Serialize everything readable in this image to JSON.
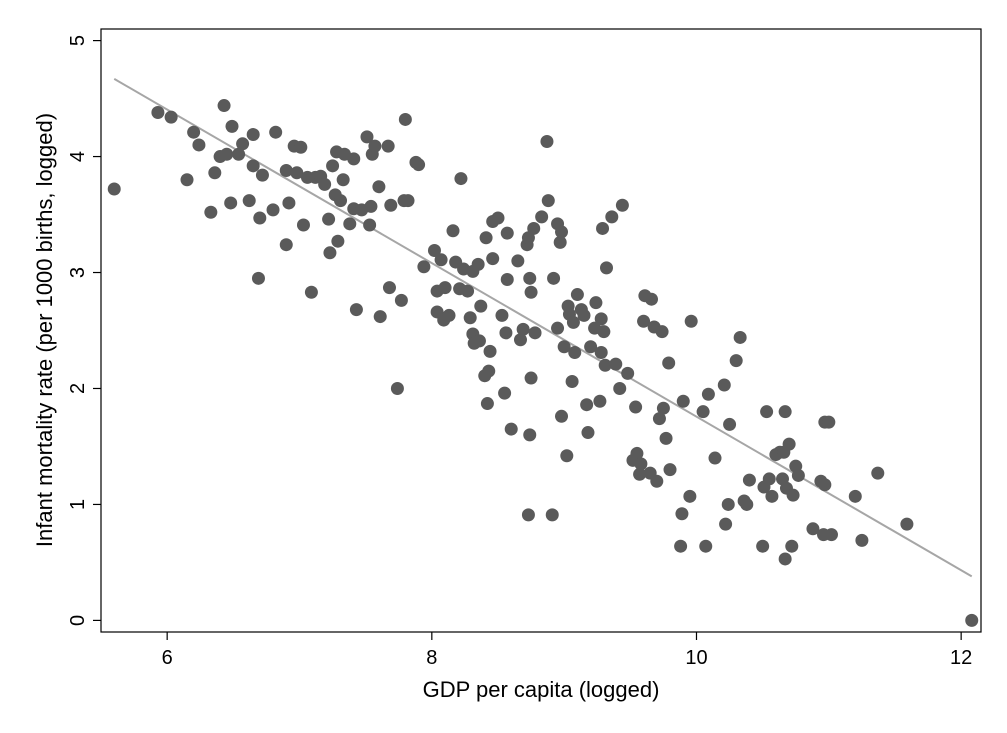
{
  "chart_data": {
    "type": "scatter",
    "title": "",
    "xlabel": "GDP per capita (logged)",
    "ylabel": "Infant mortality rate (per 1000 births, logged)",
    "xlim": [
      5.5,
      12.15
    ],
    "ylim": [
      -0.1,
      5.1
    ],
    "xticks": [
      6,
      8,
      10,
      12
    ],
    "yticks": [
      0,
      1,
      2,
      3,
      4,
      5
    ],
    "grid": false,
    "legend": "none",
    "colors": {
      "points": "#5a5a5a",
      "fit_line": "#a6a6a6",
      "axes": "#000000",
      "background": "#ffffff"
    },
    "series": [
      {
        "values": [
          [
            5.6,
            3.72
          ],
          [
            5.93,
            4.38
          ],
          [
            6.03,
            4.34
          ],
          [
            6.15,
            3.8
          ],
          [
            6.2,
            4.21
          ],
          [
            6.24,
            4.1
          ],
          [
            6.33,
            3.52
          ],
          [
            6.36,
            3.86
          ],
          [
            6.4,
            4.0
          ],
          [
            6.43,
            4.44
          ],
          [
            6.45,
            4.02
          ],
          [
            6.48,
            3.6
          ],
          [
            6.49,
            4.26
          ],
          [
            6.54,
            4.02
          ],
          [
            6.57,
            4.11
          ],
          [
            6.62,
            3.62
          ],
          [
            6.65,
            4.19
          ],
          [
            6.65,
            3.92
          ],
          [
            6.69,
            2.95
          ],
          [
            6.7,
            3.47
          ],
          [
            6.72,
            3.84
          ],
          [
            6.8,
            3.54
          ],
          [
            6.82,
            4.21
          ],
          [
            6.9,
            3.88
          ],
          [
            6.92,
            3.6
          ],
          [
            6.9,
            3.24
          ],
          [
            6.96,
            4.09
          ],
          [
            6.98,
            3.86
          ],
          [
            7.01,
            4.08
          ],
          [
            7.03,
            3.41
          ],
          [
            7.06,
            3.82
          ],
          [
            7.09,
            2.83
          ],
          [
            7.12,
            3.82
          ],
          [
            7.16,
            3.83
          ],
          [
            7.19,
            3.76
          ],
          [
            7.22,
            3.46
          ],
          [
            7.23,
            3.17
          ],
          [
            7.25,
            3.92
          ],
          [
            7.28,
            4.04
          ],
          [
            7.27,
            3.67
          ],
          [
            7.29,
            3.27
          ],
          [
            7.31,
            3.62
          ],
          [
            7.33,
            3.8
          ],
          [
            7.34,
            4.02
          ],
          [
            7.38,
            3.42
          ],
          [
            7.41,
            3.55
          ],
          [
            7.41,
            3.98
          ],
          [
            7.43,
            2.68
          ],
          [
            7.47,
            3.54
          ],
          [
            7.51,
            4.17
          ],
          [
            7.53,
            3.41
          ],
          [
            7.55,
            4.02
          ],
          [
            7.54,
            3.57
          ],
          [
            7.57,
            4.09
          ],
          [
            7.6,
            3.74
          ],
          [
            7.61,
            2.62
          ],
          [
            7.67,
            4.09
          ],
          [
            7.68,
            2.87
          ],
          [
            7.69,
            3.58
          ],
          [
            7.74,
            2.0
          ],
          [
            7.77,
            2.76
          ],
          [
            7.79,
            3.62
          ],
          [
            7.8,
            4.32
          ],
          [
            7.82,
            3.62
          ],
          [
            7.88,
            3.95
          ],
          [
            7.9,
            3.93
          ],
          [
            7.94,
            3.05
          ],
          [
            8.02,
            3.19
          ],
          [
            8.04,
            2.84
          ],
          [
            8.04,
            2.66
          ],
          [
            8.07,
            3.11
          ],
          [
            8.09,
            2.59
          ],
          [
            8.1,
            2.87
          ],
          [
            8.13,
            2.63
          ],
          [
            8.16,
            3.36
          ],
          [
            8.18,
            3.09
          ],
          [
            8.21,
            2.86
          ],
          [
            8.22,
            3.81
          ],
          [
            8.24,
            3.03
          ],
          [
            8.27,
            2.84
          ],
          [
            8.29,
            2.61
          ],
          [
            8.31,
            3.01
          ],
          [
            8.31,
            2.47
          ],
          [
            8.32,
            2.39
          ],
          [
            8.35,
            3.07
          ],
          [
            8.36,
            2.41
          ],
          [
            8.37,
            2.71
          ],
          [
            8.4,
            2.11
          ],
          [
            8.41,
            3.3
          ],
          [
            8.42,
            1.87
          ],
          [
            8.43,
            2.15
          ],
          [
            8.44,
            2.32
          ],
          [
            8.46,
            3.44
          ],
          [
            8.46,
            3.12
          ],
          [
            8.5,
            3.47
          ],
          [
            8.53,
            2.63
          ],
          [
            8.55,
            1.96
          ],
          [
            8.56,
            2.48
          ],
          [
            8.57,
            3.34
          ],
          [
            8.57,
            2.94
          ],
          [
            8.6,
            1.65
          ],
          [
            8.65,
            3.1
          ],
          [
            8.67,
            2.42
          ],
          [
            8.69,
            2.51
          ],
          [
            8.72,
            3.24
          ],
          [
            8.73,
            0.91
          ],
          [
            8.73,
            3.3
          ],
          [
            8.74,
            2.95
          ],
          [
            8.74,
            1.6
          ],
          [
            8.75,
            2.83
          ],
          [
            8.75,
            2.09
          ],
          [
            8.77,
            3.38
          ],
          [
            8.78,
            2.48
          ],
          [
            8.83,
            3.48
          ],
          [
            8.87,
            4.13
          ],
          [
            8.88,
            3.62
          ],
          [
            8.91,
            0.91
          ],
          [
            8.92,
            2.95
          ],
          [
            8.95,
            3.42
          ],
          [
            8.95,
            2.52
          ],
          [
            8.97,
            3.26
          ],
          [
            8.98,
            1.76
          ],
          [
            8.98,
            3.35
          ],
          [
            9.0,
            2.36
          ],
          [
            9.02,
            1.42
          ],
          [
            9.03,
            2.71
          ],
          [
            9.04,
            2.64
          ],
          [
            9.06,
            2.06
          ],
          [
            9.07,
            2.57
          ],
          [
            9.08,
            2.31
          ],
          [
            9.1,
            2.81
          ],
          [
            9.13,
            2.68
          ],
          [
            9.15,
            2.63
          ],
          [
            9.17,
            1.86
          ],
          [
            9.18,
            1.62
          ],
          [
            9.2,
            2.36
          ],
          [
            9.23,
            2.52
          ],
          [
            9.24,
            2.74
          ],
          [
            9.27,
            1.89
          ],
          [
            9.28,
            2.31
          ],
          [
            9.28,
            2.6
          ],
          [
            9.29,
            3.38
          ],
          [
            9.3,
            2.49
          ],
          [
            9.31,
            2.2
          ],
          [
            9.32,
            3.04
          ],
          [
            9.36,
            3.48
          ],
          [
            9.39,
            2.21
          ],
          [
            9.42,
            2.0
          ],
          [
            9.44,
            3.58
          ],
          [
            9.48,
            2.13
          ],
          [
            9.52,
            1.38
          ],
          [
            9.54,
            1.84
          ],
          [
            9.55,
            1.44
          ],
          [
            9.57,
            1.26
          ],
          [
            9.58,
            1.35
          ],
          [
            9.6,
            2.58
          ],
          [
            9.61,
            2.8
          ],
          [
            9.65,
            1.27
          ],
          [
            9.66,
            2.77
          ],
          [
            9.68,
            2.53
          ],
          [
            9.7,
            1.2
          ],
          [
            9.72,
            1.74
          ],
          [
            9.74,
            2.49
          ],
          [
            9.75,
            1.83
          ],
          [
            9.77,
            1.57
          ],
          [
            9.79,
            2.22
          ],
          [
            9.8,
            1.3
          ],
          [
            9.88,
            0.64
          ],
          [
            9.89,
            0.92
          ],
          [
            9.9,
            1.89
          ],
          [
            9.95,
            1.07
          ],
          [
            9.96,
            2.58
          ],
          [
            10.05,
            1.8
          ],
          [
            10.07,
            0.64
          ],
          [
            10.09,
            1.95
          ],
          [
            10.14,
            1.4
          ],
          [
            10.21,
            2.03
          ],
          [
            10.22,
            0.83
          ],
          [
            10.24,
            1.0
          ],
          [
            10.25,
            1.69
          ],
          [
            10.3,
            2.24
          ],
          [
            10.33,
            2.44
          ],
          [
            10.36,
            1.03
          ],
          [
            10.38,
            1.0
          ],
          [
            10.4,
            1.21
          ],
          [
            10.5,
            0.64
          ],
          [
            10.51,
            1.15
          ],
          [
            10.53,
            1.8
          ],
          [
            10.55,
            1.22
          ],
          [
            10.57,
            1.07
          ],
          [
            10.6,
            1.43
          ],
          [
            10.63,
            1.45
          ],
          [
            10.65,
            1.22
          ],
          [
            10.66,
            1.45
          ],
          [
            10.67,
            0.53
          ],
          [
            10.67,
            1.8
          ],
          [
            10.68,
            1.14
          ],
          [
            10.7,
            1.52
          ],
          [
            10.72,
            0.64
          ],
          [
            10.73,
            1.08
          ],
          [
            10.75,
            1.33
          ],
          [
            10.77,
            1.25
          ],
          [
            10.88,
            0.79
          ],
          [
            10.94,
            1.2
          ],
          [
            10.97,
            1.17
          ],
          [
            10.96,
            0.74
          ],
          [
            10.97,
            1.71
          ],
          [
            11.0,
            1.71
          ],
          [
            11.02,
            0.74
          ],
          [
            11.2,
            1.07
          ],
          [
            11.25,
            0.69
          ],
          [
            11.37,
            1.27
          ],
          [
            11.59,
            0.83
          ],
          [
            12.08,
            0.0
          ]
        ]
      }
    ],
    "fit_line": {
      "x": [
        5.6,
        12.08
      ],
      "y": [
        4.67,
        0.38
      ]
    }
  }
}
